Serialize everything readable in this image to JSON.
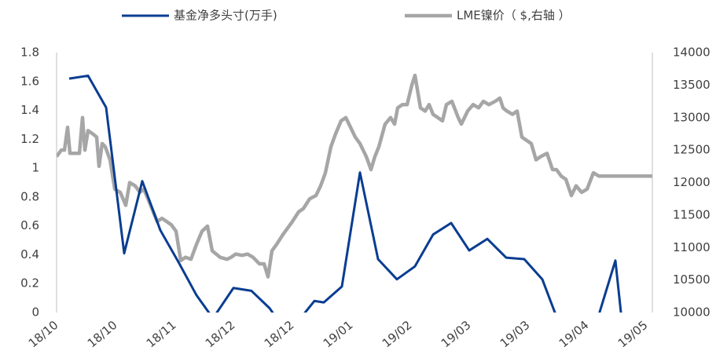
{
  "chart_data": {
    "type": "line",
    "xlim": [
      0,
      758
    ],
    "xticks": [
      {
        "value": 0,
        "label": "18/10"
      },
      {
        "value": 75,
        "label": "18/10"
      },
      {
        "value": 150,
        "label": "18/11"
      },
      {
        "value": 225,
        "label": "18/12"
      },
      {
        "value": 300,
        "label": "18/12"
      },
      {
        "value": 375,
        "label": "19/01"
      },
      {
        "value": 450,
        "label": "19/02"
      },
      {
        "value": 525,
        "label": "19/03"
      },
      {
        "value": 600,
        "label": "19/03"
      },
      {
        "value": 675,
        "label": "19/04"
      },
      {
        "value": 750,
        "label": "19/05"
      }
    ],
    "ylim": [
      0,
      1.8
    ],
    "yticks": [
      0,
      0.2,
      0.4,
      0.6,
      0.8,
      1,
      1.2,
      1.4,
      1.6,
      1.8
    ],
    "y2lim": [
      10000,
      14000
    ],
    "y2ticks": [
      10000,
      10500,
      11000,
      11500,
      12000,
      12500,
      13000,
      13500,
      14000
    ],
    "series": [
      {
        "name": "基金净多头寸(万手)",
        "color": "#0a3d91",
        "x": [
          16,
          40,
          63,
          86,
          109,
          132,
          155,
          178,
          199,
          225,
          248,
          271,
          294,
          328,
          340,
          363,
          386,
          409,
          433,
          456,
          479,
          502,
          525,
          548,
          572,
          595,
          618,
          641,
          664,
          688,
          711,
          720
        ],
        "values": [
          1.62,
          1.64,
          1.42,
          0.41,
          0.91,
          0.57,
          0.35,
          0.12,
          -0.04,
          0.17,
          0.15,
          0.03,
          -0.15,
          0.08,
          0.07,
          0.18,
          0.97,
          0.37,
          0.23,
          0.32,
          0.54,
          0.62,
          0.43,
          0.51,
          0.38,
          0.37,
          0.23,
          -0.1,
          -0.2,
          -0.05,
          0.36,
          -0.1
        ]
      },
      {
        "name": "LME镍价（ $,右轴 ）",
        "color": "#a6a6a6",
        "axis": "y2",
        "x": [
          0,
          6,
          10,
          14,
          17,
          23,
          29,
          33,
          36,
          40,
          46,
          51,
          54,
          58,
          62,
          68,
          74,
          81,
          88,
          93,
          100,
          106,
          111,
          118,
          123,
          128,
          134,
          140,
          146,
          152,
          158,
          164,
          171,
          178,
          185,
          192,
          198,
          208,
          217,
          222,
          228,
          236,
          243,
          250,
          258,
          264,
          269,
          274,
          280,
          288,
          300,
          308,
          314,
          322,
          330,
          336,
          342,
          349,
          355,
          362,
          368,
          374,
          380,
          386,
          394,
          400,
          405,
          410,
          418,
          425,
          430,
          434,
          440,
          446,
          452,
          456,
          463,
          469,
          474,
          479,
          485,
          491,
          496,
          503,
          511,
          515,
          519,
          523,
          530,
          537,
          543,
          550,
          558,
          564,
          568,
          573,
          580,
          586,
          592,
          598,
          604,
          610,
          616,
          624,
          631,
          636,
          642,
          648,
          655,
          661,
          668,
          675,
          683,
          690,
          698,
          703,
          710,
          718,
          725,
          728,
          734,
          740,
          746,
          753,
          758
        ],
        "values": [
          12400,
          12500,
          12500,
          12850,
          12450,
          12450,
          12450,
          13000,
          12500,
          12800,
          12750,
          12700,
          12250,
          12600,
          12550,
          12350,
          11900,
          11850,
          11650,
          12000,
          11950,
          11850,
          11900,
          11700,
          11550,
          11400,
          11450,
          11400,
          11350,
          11250,
          10800,
          10850,
          10820,
          11050,
          11250,
          11330,
          10950,
          10850,
          10820,
          10850,
          10900,
          10880,
          10900,
          10850,
          10750,
          10750,
          10550,
          10950,
          11050,
          11200,
          11400,
          11550,
          11600,
          11750,
          11800,
          11950,
          12150,
          12550,
          12750,
          12950,
          13000,
          12850,
          12700,
          12600,
          12400,
          12200,
          12400,
          12550,
          12900,
          13000,
          12900,
          13150,
          13200,
          13200,
          13500,
          13650,
          13150,
          13100,
          13200,
          13050,
          13000,
          12950,
          13200,
          13250,
          13000,
          12900,
          13000,
          13100,
          13200,
          13150,
          13250,
          13200,
          13250,
          13300,
          13150,
          13100,
          13050,
          13100,
          12700,
          12650,
          12600,
          12350,
          12400,
          12450,
          12200,
          12200,
          12100,
          12050,
          11800,
          11950,
          11850,
          11900,
          12150,
          12100,
          12100,
          12100,
          12100,
          12100,
          12100,
          12100,
          12100,
          12100,
          12100,
          12100,
          12100
        ]
      }
    ]
  }
}
